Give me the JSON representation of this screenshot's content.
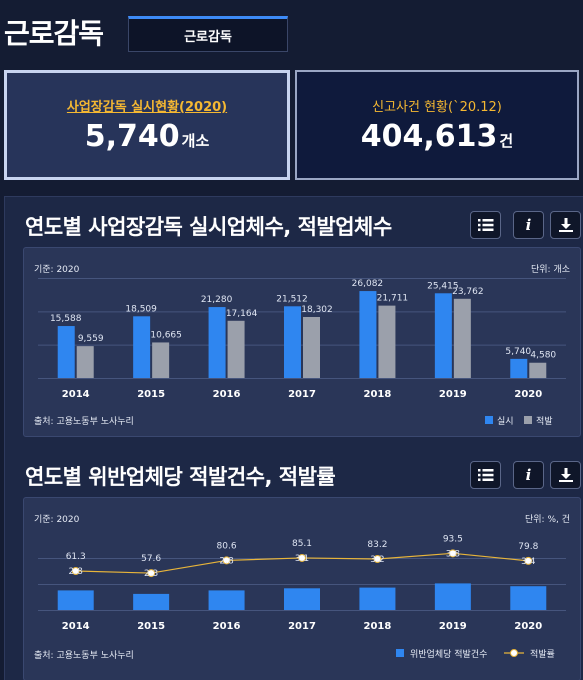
{
  "header": {
    "title": "근로감독",
    "tab_label": "근로감독"
  },
  "cards": [
    {
      "label": "사업장감독 실시현황(2020)",
      "value": "5,740",
      "unit": "개소"
    },
    {
      "label": "신고사건 현황(`20.12)",
      "value": "404,613",
      "unit": "건"
    }
  ],
  "sections": [
    {
      "title": "연도별 사업장감독 실시업체수, 적발업체수",
      "basis": "기준: 2020",
      "unit": "단위: 개소",
      "source": "출처: 고용노동부 노사누리",
      "legend": [
        "실시",
        "적발"
      ]
    },
    {
      "title": "연도별 위반업체당 적발건수, 적발률",
      "basis": "기준: 2020",
      "unit": "단위: %, 건",
      "source": "출처: 고용노동부 노사누리",
      "legend": [
        "위반업체당 적발건수",
        "적발률"
      ]
    }
  ],
  "icons": {
    "list": "list-icon",
    "info": "info-icon",
    "download": "download-icon"
  },
  "colors": {
    "accent": "#3d8af7",
    "bar_blue": "#2f86f0",
    "bar_gray": "#9ba0ab",
    "line": "#e8b53a",
    "gold": "#f5b832"
  },
  "chart_data": [
    {
      "type": "bar",
      "categories": [
        "2014",
        "2015",
        "2016",
        "2017",
        "2018",
        "2019",
        "2020"
      ],
      "series": [
        {
          "name": "실시",
          "values": [
            15588,
            18509,
            21280,
            21512,
            26082,
            25415,
            5740
          ],
          "labels": [
            "15,588",
            "18,509",
            "21,280",
            "21,512",
            "26,082",
            "25,415",
            "5,740"
          ]
        },
        {
          "name": "적발",
          "values": [
            9559,
            10665,
            17164,
            18302,
            21711,
            23762,
            4580
          ],
          "labels": [
            "9,559",
            "10,665",
            "17,164",
            "18,302",
            "21,711",
            "23,762",
            "4,580"
          ]
        }
      ],
      "ylim": [
        0,
        30000
      ]
    },
    {
      "type": "bar",
      "categories": [
        "2014",
        "2015",
        "2016",
        "2017",
        "2018",
        "2019",
        "2020"
      ],
      "series": [
        {
          "name": "위반업체당 적발건수",
          "type": "bar",
          "values": [
            2.8,
            2.3,
            2.8,
            3.1,
            3.2,
            3.8,
            3.4
          ]
        },
        {
          "name": "적발률",
          "type": "line",
          "values": [
            61.3,
            57.6,
            80.6,
            85.1,
            83.2,
            93.5,
            79.8
          ]
        }
      ]
    }
  ]
}
